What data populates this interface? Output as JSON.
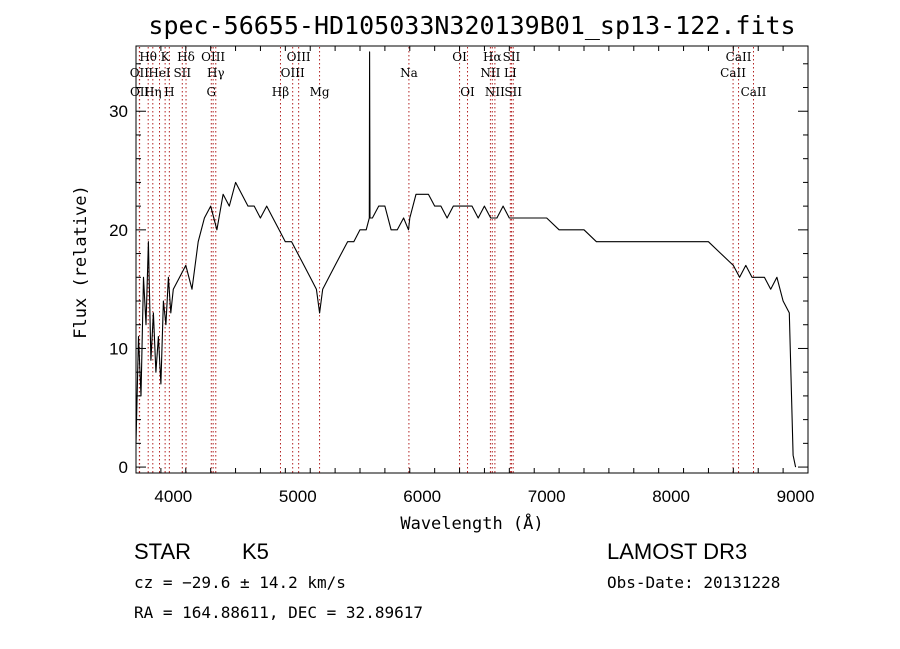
{
  "chart_data": {
    "type": "line",
    "title": "spec-56655-HD105033N320139B01_sp13-122.fits",
    "xlabel": "Wavelength (Å)",
    "ylabel": "Flux (relative)",
    "xlim": [
      3700,
      9100
    ],
    "ylim": [
      -0.5,
      35.5
    ],
    "xticks": [
      4000,
      5000,
      6000,
      7000,
      8000,
      9000
    ],
    "yticks": [
      0,
      10,
      20,
      30
    ],
    "grid": false,
    "line_color": "#000000",
    "marker_color": "#b22222",
    "series": [
      {
        "x": [
          3700,
          3720,
          3740,
          3760,
          3780,
          3800,
          3820,
          3840,
          3860,
          3880,
          3900,
          3920,
          3940,
          3960,
          3980,
          4000,
          4050,
          4100,
          4150,
          4200,
          4250,
          4300,
          4350,
          4400,
          4450,
          4500,
          4550,
          4600,
          4650,
          4700,
          4750,
          4800,
          4850,
          4900,
          4950,
          5000,
          5050,
          5100,
          5150,
          5175,
          5200,
          5250,
          5300,
          5350,
          5400,
          5450,
          5500,
          5550,
          5575,
          5577,
          5580,
          5600,
          5650,
          5700,
          5750,
          5800,
          5850,
          5890,
          5900,
          5950,
          6000,
          6050,
          6100,
          6150,
          6200,
          6250,
          6300,
          6350,
          6400,
          6450,
          6500,
          6550,
          6563,
          6600,
          6650,
          6700,
          6750,
          6800,
          6900,
          7000,
          7100,
          7200,
          7300,
          7400,
          7500,
          7600,
          7700,
          7800,
          7900,
          8000,
          8100,
          8200,
          8300,
          8400,
          8500,
          8550,
          8600,
          8650,
          8700,
          8750,
          8800,
          8850,
          8900,
          8950,
          8980,
          9000
        ],
        "y": [
          2,
          11,
          6,
          16,
          12,
          19,
          9,
          13,
          8,
          11,
          7,
          14,
          12,
          16,
          13,
          15,
          16,
          17,
          15,
          19,
          21,
          22,
          20,
          23,
          22,
          24,
          23,
          22,
          22,
          21,
          22,
          21,
          20,
          19,
          19,
          18,
          17,
          16,
          15,
          13,
          15,
          16,
          17,
          18,
          19,
          19,
          20,
          20,
          21,
          35,
          21,
          21,
          22,
          22,
          20,
          20,
          21,
          20,
          21,
          23,
          23,
          23,
          22,
          22,
          21,
          22,
          22,
          22,
          22,
          21,
          22,
          21,
          21,
          21,
          22,
          21,
          21,
          21,
          21,
          21,
          20,
          20,
          20,
          19,
          19,
          19,
          19,
          19,
          19,
          19,
          19,
          19,
          19,
          18,
          17,
          16,
          17,
          16,
          16,
          16,
          15,
          16,
          14,
          13,
          1,
          0
        ]
      }
    ],
    "line_markers": [
      {
        "label": "OII",
        "x": 3727,
        "row": 2
      },
      {
        "label": "OII",
        "x": 3729,
        "row": 3
      },
      {
        "label": "Hθ",
        "x": 3798,
        "row": 1
      },
      {
        "label": "Hη",
        "x": 3835,
        "row": 3
      },
      {
        "label": "HeI",
        "x": 3889,
        "row": 2
      },
      {
        "label": "K",
        "x": 3934,
        "row": 1
      },
      {
        "label": "H",
        "x": 3968,
        "row": 3
      },
      {
        "label": "SII",
        "x": 4072,
        "row": 2
      },
      {
        "label": "Hδ",
        "x": 4102,
        "row": 1
      },
      {
        "label": "G",
        "x": 4305,
        "row": 3
      },
      {
        "label": "OIII",
        "x": 4320,
        "row": 1
      },
      {
        "label": "Hγ",
        "x": 4341,
        "row": 2
      },
      {
        "label": "Hβ",
        "x": 4861,
        "row": 3
      },
      {
        "label": "OIII",
        "x": 4959,
        "row": 2
      },
      {
        "label": "OIII",
        "x": 5007,
        "row": 1
      },
      {
        "label": "Mg",
        "x": 5175,
        "row": 3
      },
      {
        "label": "Na",
        "x": 5893,
        "row": 2
      },
      {
        "label": "OI",
        "x": 6300,
        "row": 1
      },
      {
        "label": "OI",
        "x": 6364,
        "row": 3
      },
      {
        "label": "NII",
        "x": 6548,
        "row": 2
      },
      {
        "label": "Hα",
        "x": 6563,
        "row": 1
      },
      {
        "label": "NII",
        "x": 6584,
        "row": 3
      },
      {
        "label": "LI",
        "x": 6708,
        "row": 2
      },
      {
        "label": "SII",
        "x": 6717,
        "row": 1
      },
      {
        "label": "SII",
        "x": 6731,
        "row": 3
      },
      {
        "label": "CaII",
        "x": 8498,
        "row": 2
      },
      {
        "label": "CaII",
        "x": 8542,
        "row": 1
      },
      {
        "label": "CaII",
        "x": 8662,
        "row": 3
      }
    ]
  },
  "info": {
    "class_label": "STAR",
    "subclass_label": "K5",
    "survey": "LAMOST DR3",
    "cz": "cz = −29.6 ± 14.2 km/s",
    "obs_date": "Obs-Date: 20131228",
    "coords": "RA = 164.88611, DEC =  32.89617"
  }
}
